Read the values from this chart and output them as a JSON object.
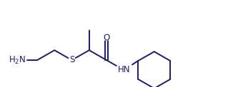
{
  "bg_color": "#ffffff",
  "line_color": "#1a1a6e",
  "line_width": 1.4,
  "font_size": 8.5,
  "font_color": "#1a1a6e",
  "figsize": [
    3.26,
    1.23
  ],
  "dpi": 100,
  "xlim": [
    0,
    326
  ],
  "ylim": [
    0,
    123
  ]
}
